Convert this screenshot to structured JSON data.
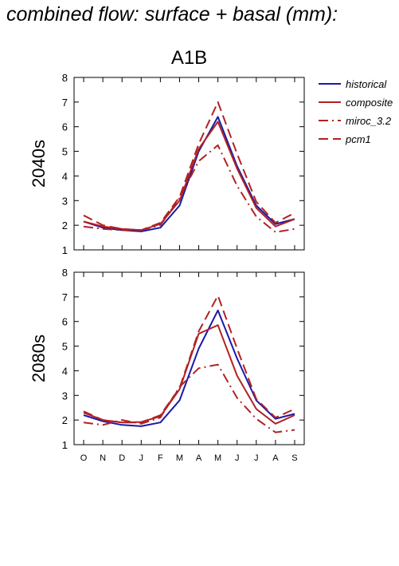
{
  "figure_title": "combined flow: surface + basal (mm):",
  "chart_data": {
    "type": "line",
    "scenario": "A1B",
    "categories": [
      "O",
      "N",
      "D",
      "J",
      "F",
      "M",
      "A",
      "M",
      "J",
      "J",
      "A",
      "S"
    ],
    "ylim": [
      1,
      8
    ],
    "yticks": [
      1,
      2,
      3,
      4,
      5,
      6,
      7,
      8
    ],
    "legend_position": "right",
    "legend": [
      {
        "name": "historical",
        "color": "#1a1aa8",
        "dash": "solid"
      },
      {
        "name": "composite",
        "color": "#b22222",
        "dash": "solid"
      },
      {
        "name": "miroc_3.2",
        "color": "#b22222",
        "dash": "dashdot"
      },
      {
        "name": "pcm1",
        "color": "#b22222",
        "dash": "dashed"
      }
    ],
    "panels": [
      {
        "label": "2040s",
        "series": [
          {
            "name": "historical",
            "values": [
              2.15,
              1.9,
              1.8,
              1.75,
              1.9,
              2.8,
              5.0,
              6.4,
              4.4,
              2.8,
              2.05,
              2.25
            ]
          },
          {
            "name": "composite",
            "values": [
              2.15,
              1.95,
              1.85,
              1.8,
              2.05,
              3.0,
              5.1,
              6.2,
              4.3,
              2.7,
              1.95,
              2.25
            ]
          },
          {
            "name": "miroc_3.2",
            "values": [
              1.95,
              1.85,
              1.8,
              1.8,
              2.0,
              3.1,
              4.6,
              5.25,
              3.6,
              2.35,
              1.72,
              1.85
            ]
          },
          {
            "name": "pcm1",
            "values": [
              2.4,
              2.0,
              1.85,
              1.8,
              2.1,
              3.15,
              5.3,
              7.0,
              4.9,
              2.95,
              2.1,
              2.5
            ]
          }
        ]
      },
      {
        "label": "2080s",
        "series": [
          {
            "name": "historical",
            "values": [
              2.2,
              1.95,
              1.8,
              1.75,
              1.9,
              2.8,
              4.9,
              6.45,
              4.5,
              2.8,
              2.05,
              2.25
            ]
          },
          {
            "name": "composite",
            "values": [
              2.3,
              2.0,
              1.9,
              1.92,
              2.15,
              3.25,
              5.5,
              5.85,
              3.8,
              2.45,
              1.85,
              2.2
            ]
          },
          {
            "name": "miroc_3.2",
            "values": [
              1.9,
              1.8,
              2.0,
              1.85,
              2.1,
              3.35,
              4.1,
              4.25,
              2.9,
              2.05,
              1.5,
              1.6
            ]
          },
          {
            "name": "pcm1",
            "values": [
              2.35,
              2.0,
              1.9,
              1.9,
              2.2,
              3.3,
              5.6,
              7.05,
              4.9,
              2.85,
              2.1,
              2.45
            ]
          }
        ]
      }
    ]
  }
}
